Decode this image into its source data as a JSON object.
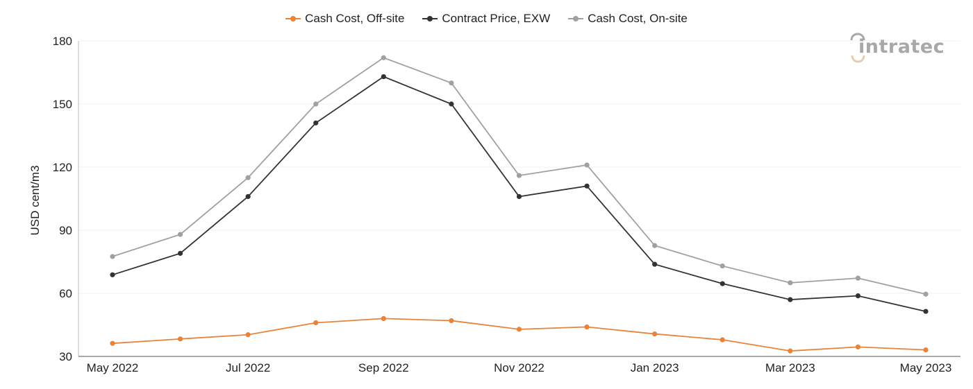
{
  "brand": {
    "logo_text": "intratec",
    "logo_color": "#a8a8a8",
    "logo_accent": "#e5cdb3"
  },
  "chart_data": {
    "type": "line",
    "title": "",
    "xlabel": "",
    "ylabel": "USD cent/m3",
    "ylim": [
      30,
      180
    ],
    "yticks": [
      30,
      60,
      90,
      120,
      150,
      180
    ],
    "x": [
      "May 2022",
      "Jun 2022",
      "Jul 2022",
      "Aug 2022",
      "Sep 2022",
      "Oct 2022",
      "Nov 2022",
      "Dec 2022",
      "Jan 2023",
      "Feb 2023",
      "Mar 2023",
      "Apr 2023",
      "May 2023"
    ],
    "xtick_labels": [
      "May 2022",
      "",
      "Jul 2022",
      "",
      "Sep 2022",
      "",
      "Nov 2022",
      "",
      "Jan 2023",
      "",
      "Mar 2023",
      "",
      "May 2023"
    ],
    "grid": true,
    "legend_position": "top-center",
    "series": [
      {
        "name": "Cash Cost, Off-site",
        "color": "#e8833a",
        "values": [
          36.2,
          38.3,
          40.3,
          46.0,
          48.0,
          47.0,
          42.9,
          44.0,
          40.7,
          37.9,
          32.6,
          34.5,
          33.1
        ]
      },
      {
        "name": "Contract Price, EXW",
        "color": "#333333",
        "values": [
          68.8,
          79.0,
          106.0,
          141.0,
          163.0,
          150.0,
          106.0,
          111.0,
          73.8,
          64.6,
          57.0,
          58.8,
          51.4
        ]
      },
      {
        "name": "Cash Cost, On-site",
        "color": "#a0a0a0",
        "values": [
          77.5,
          88.0,
          115.0,
          150.0,
          172.0,
          160.0,
          116.0,
          121.0,
          82.7,
          73.0,
          65.0,
          67.2,
          59.6
        ]
      }
    ]
  }
}
